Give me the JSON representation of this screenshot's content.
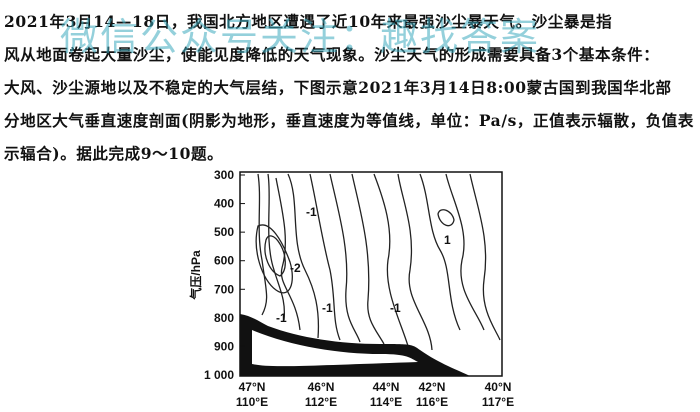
{
  "paragraph": [
    "2021年3月14—18日，我国北方地区遭遇了近10年来最强沙尘暴天气。沙尘暴是指",
    "风从地面卷起大量沙尘，使能见度降低的天气现象。沙尘天气的形成需要具备3个基本条件：",
    "大风、沙尘源地以及不稳定的大气层结，下图示意2021年3月14日8:00蒙古国到我国华北部",
    "分地区大气垂直速度剖面(阴影为地形，垂直速度为等值线，单位：Pa/s，正值表示辐散，负值表",
    "示辐合)。据此完成9～10题。"
  ],
  "watermark": "微信公众号关注：趣找答案",
  "figure": {
    "y_label": "气压/hPa",
    "y_ticks": [
      "300",
      "400",
      "500",
      "600",
      "700",
      "800",
      "900",
      "1 000"
    ],
    "x_ticks": [
      {
        "lat": "47°N",
        "lon": "110°E"
      },
      {
        "lat": "46°N",
        "lon": "112°E"
      },
      {
        "lat": "44°N",
        "lon": "114°E"
      },
      {
        "lat": "42°N",
        "lon": "116°E"
      },
      {
        "lat": "40°N",
        "lon": "117°E"
      }
    ],
    "contour_labels": [
      "-1",
      "-2",
      "-1",
      "-1",
      "-1",
      "1"
    ]
  }
}
